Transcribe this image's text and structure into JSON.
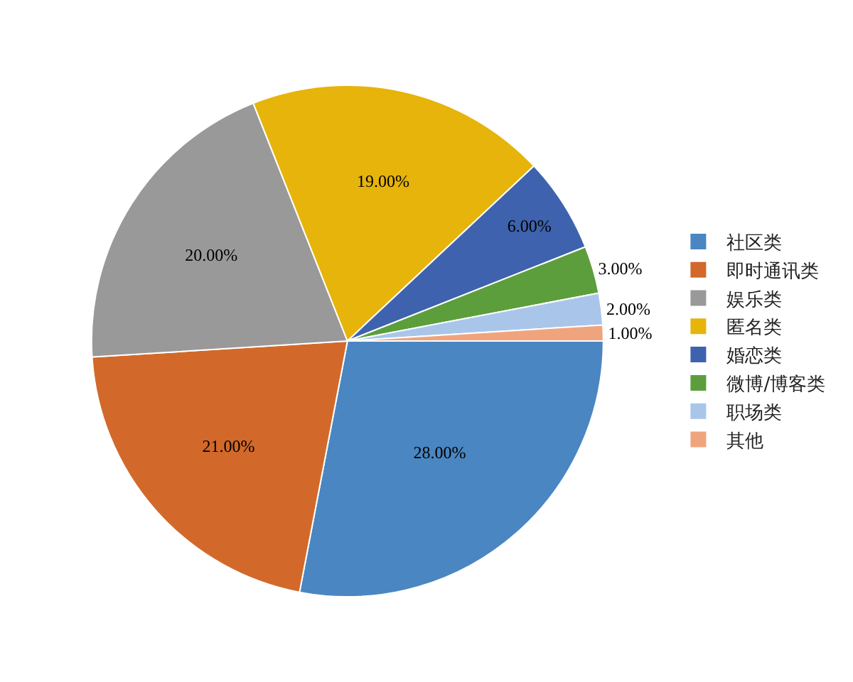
{
  "chart_data": {
    "type": "pie",
    "categories": [
      "社区类",
      "即时通讯类",
      "娱乐类",
      "匿名类",
      "婚恋类",
      "微博/博客类",
      "职场类",
      "其他"
    ],
    "values": [
      28,
      21,
      20,
      19,
      6,
      3,
      2,
      1
    ],
    "value_labels": [
      "28.00%",
      "21.00%",
      "20.00%",
      "19.00%",
      "6.00%",
      "3.00%",
      "2.00%",
      "1.00%"
    ],
    "colors": [
      "#4a86c1",
      "#d2692a",
      "#999999",
      "#e6b40a",
      "#3e62ad",
      "#5c9e3c",
      "#a9c5ea",
      "#f0a47e"
    ],
    "legend": "right"
  }
}
